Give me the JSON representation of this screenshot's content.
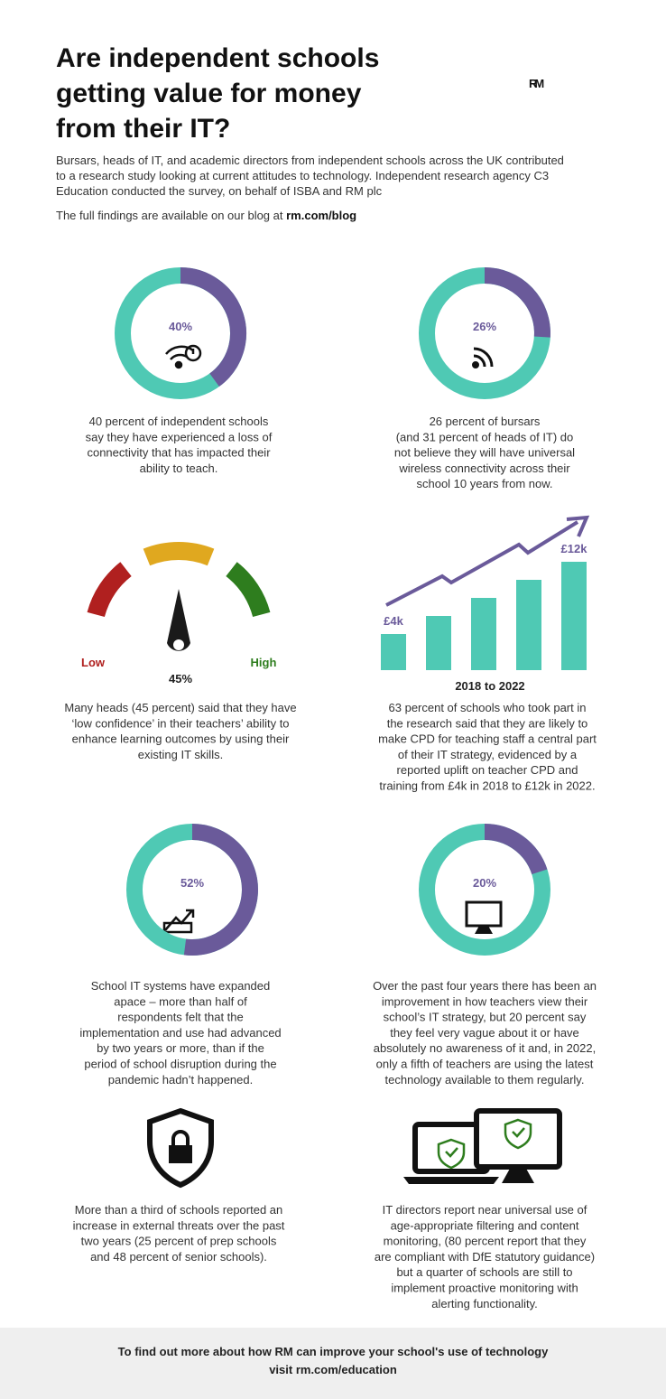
{
  "header": {
    "title_lines": [
      "Are independent schools",
      "getting value for money",
      "from their IT?"
    ],
    "logo": "RM",
    "intro_lines": [
      "Bursars, heads of IT, and academic directors from independent schools across the UK contributed",
      "to a research study looking at current attitudes to technology. Independent research agency C3",
      "Education conducted the survey, on behalf of ISBA and RM plc"
    ],
    "findings_prefix": "The full findings are available on our blog at ",
    "findings_link": "rm.com/blog"
  },
  "stats": [
    {
      "value": 40,
      "label": "40%",
      "text_lines": [
        "40 percent of independent schools",
        "say they have experienced a loss of",
        "connectivity that has impacted their",
        "ability to teach."
      ]
    },
    {
      "value": 26,
      "label": "26%",
      "text_lines": [
        "26 percent of bursars",
        "(and 31 percent of heads of IT) do",
        "not believe they will have universal",
        "wireless connectivity across their",
        "school 10 years from now."
      ]
    },
    {
      "value": 52,
      "label": "52%",
      "text_lines": [
        "School IT systems have expanded",
        "apace – more than half of",
        "respondents felt that the",
        "implementation and use had advanced",
        "by two years or more, than if the",
        "period of school disruption during the",
        "pandemic hadn’t happened."
      ]
    },
    {
      "value": 20,
      "label": "20%",
      "text_lines": [
        "Over the past four years there has been an",
        "improvement in how teachers view their",
        "school’s IT strategy, but 20 percent say",
        "they feel very vague about it or have",
        "absolutely no awareness of it and, in 2022,",
        "only a fifth of teachers are using the latest",
        "technology available to them regularly."
      ]
    }
  ],
  "gauge": {
    "low": "Low",
    "high": "High",
    "label": "45%",
    "text_lines": [
      "Many heads (45 percent) said that they have",
      "‘low confidence’ in their teachers’ ability to",
      "enhance learning outcomes by using their",
      "existing IT skills."
    ]
  },
  "growth": {
    "values": [
      4,
      6,
      8,
      10,
      12
    ],
    "value_labels": [
      "£4k",
      null,
      null,
      null,
      "£12k"
    ],
    "x_label": "2018 to 2022",
    "text_lines": [
      "63 percent of schools who took part in",
      "the research said that they are likely to",
      "make CPD for teaching staff a central part",
      "of their IT strategy, evidenced by a",
      "reported uplift on teacher CPD and",
      "training from £4k in 2018 to £12k in 2022."
    ]
  },
  "security": {
    "text_lines": [
      "More than a third of schools reported an",
      "increase in external threats over the past",
      "two years (25 percent of prep schools",
      "and 48 percent of senior schools)."
    ]
  },
  "monitoring": {
    "text_lines": [
      "IT directors report near universal use of",
      "age-appropriate filtering and content",
      "monitoring, (80 percent report that they",
      "are compliant with DfE statutory guidance)",
      "but a quarter of schools are still to",
      "implement proactive monitoring with",
      "alerting functionality."
    ]
  },
  "footer": {
    "lines": [
      "To find out more about how RM can improve your school's use of technology",
      "visit rm.com/education"
    ]
  }
}
